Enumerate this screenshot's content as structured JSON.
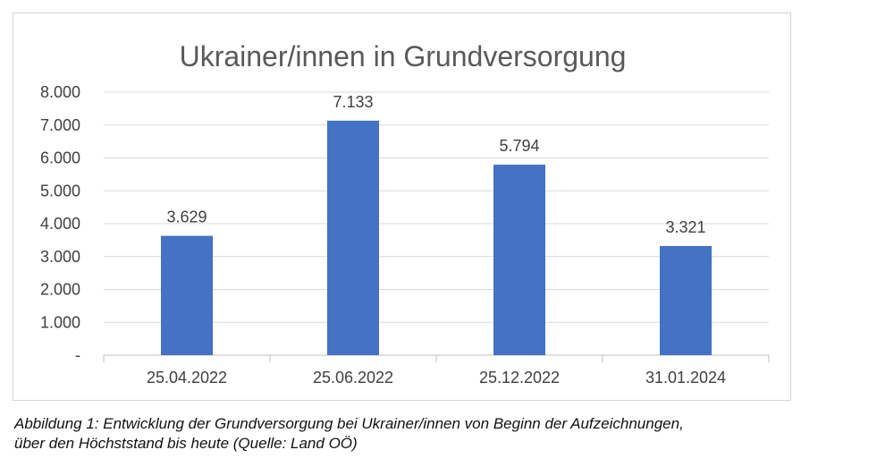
{
  "chart_data": {
    "type": "bar",
    "title": "Ukrainer/innen in Grundversorgung",
    "categories": [
      "25.04.2022",
      "25.06.2022",
      "25.12.2022",
      "31.01.2024"
    ],
    "values": [
      3629,
      7133,
      5794,
      3321
    ],
    "value_labels": [
      "3.629",
      "7.133",
      "5.794",
      "3.321"
    ],
    "xlabel": "",
    "ylabel": "",
    "ylim": [
      0,
      8000
    ],
    "y_ticks": [
      0,
      1000,
      2000,
      3000,
      4000,
      5000,
      6000,
      7000,
      8000
    ],
    "y_tick_labels": [
      "-",
      "1.000",
      "2.000",
      "3.000",
      "4.000",
      "5.000",
      "6.000",
      "7.000",
      "8.000"
    ],
    "grid": true,
    "legend": "none",
    "bar_color": "#4472C4"
  },
  "caption": {
    "line1": "Abbildung 1: Entwicklung der Grundversorgung bei Ukrainer/innen von Beginn der Aufzeichnungen,",
    "line2": "über den Höchststand bis heute (Quelle: Land OÖ)"
  },
  "colors": {
    "grid": "#d9d9d9",
    "axis": "#bfbfbf",
    "text": "#404040",
    "title": "#595959"
  }
}
